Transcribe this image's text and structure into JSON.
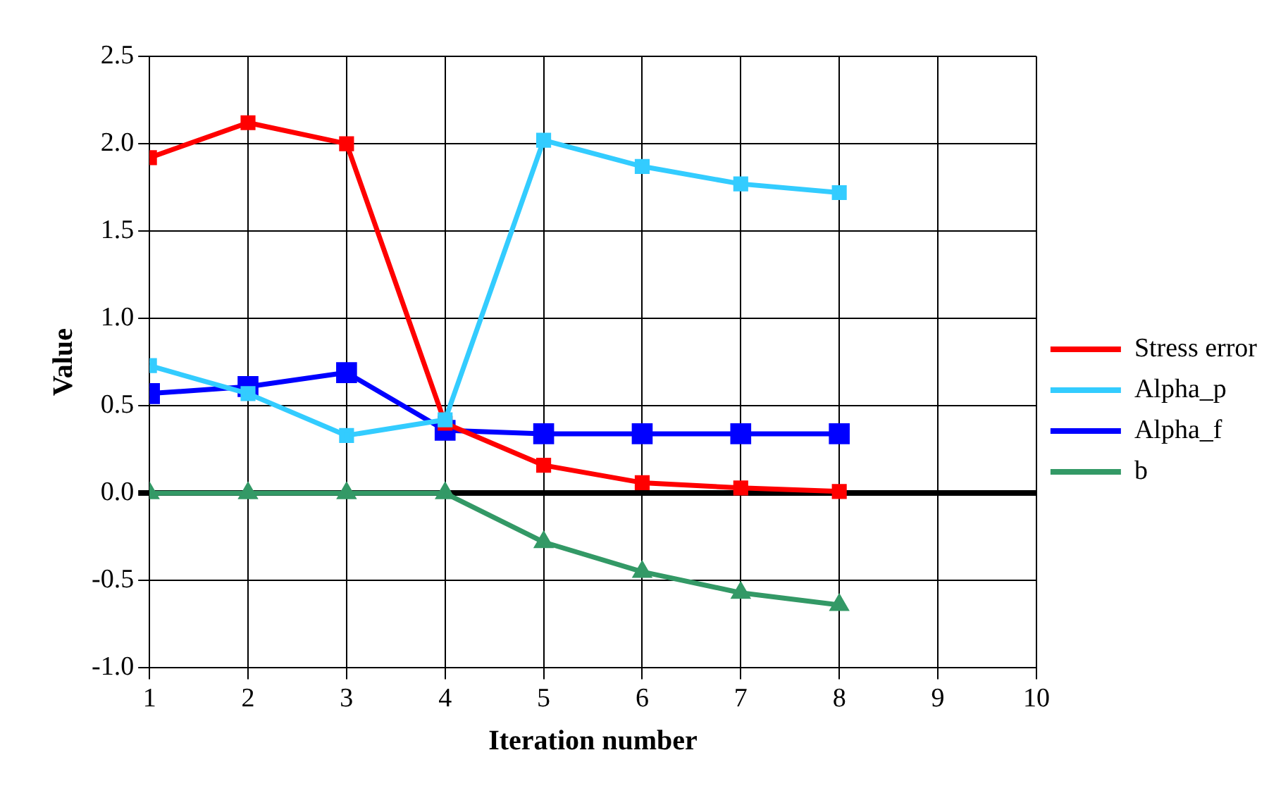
{
  "chart_data": {
    "type": "line",
    "xlabel": "Iteration number",
    "ylabel": "Value",
    "x": [
      1,
      2,
      3,
      4,
      5,
      6,
      7,
      8
    ],
    "series": [
      {
        "name": "Stress error",
        "color": "#ff0000",
        "marker": "square",
        "values": [
          1.92,
          2.12,
          2.0,
          0.4,
          0.16,
          0.06,
          0.03,
          0.01
        ]
      },
      {
        "name": "Alpha_p",
        "color": "#33ccff",
        "marker": "square",
        "values": [
          0.73,
          0.57,
          0.33,
          0.42,
          2.02,
          1.87,
          1.77,
          1.72
        ]
      },
      {
        "name": "Alpha_f",
        "color": "#0000ff",
        "marker": "square",
        "values": [
          0.57,
          0.61,
          0.69,
          0.36,
          0.34,
          0.34,
          0.34,
          0.34
        ]
      },
      {
        "name": "b",
        "color": "#339966",
        "marker": "triangle",
        "values": [
          0,
          0,
          0,
          0,
          -0.28,
          -0.45,
          -0.57,
          -0.64
        ]
      }
    ],
    "xlim": [
      1,
      10
    ],
    "xticks": [
      1,
      2,
      3,
      4,
      5,
      6,
      7,
      8,
      9,
      10
    ],
    "ylim": [
      -1,
      2.5
    ],
    "yticks": [
      {
        "value": -1,
        "label": "-1.0"
      },
      {
        "value": -0.5,
        "label": "-0.5"
      },
      {
        "value": 0,
        "label": "0.0"
      },
      {
        "value": 0.5,
        "label": "0.5"
      },
      {
        "value": 1,
        "label": "1.0"
      },
      {
        "value": 1.5,
        "label": "1.5"
      },
      {
        "value": 2,
        "label": "2.0"
      },
      {
        "value": 2.5,
        "label": "2.5"
      }
    ],
    "grid": true,
    "legend": "right",
    "line_style": "solid"
  }
}
